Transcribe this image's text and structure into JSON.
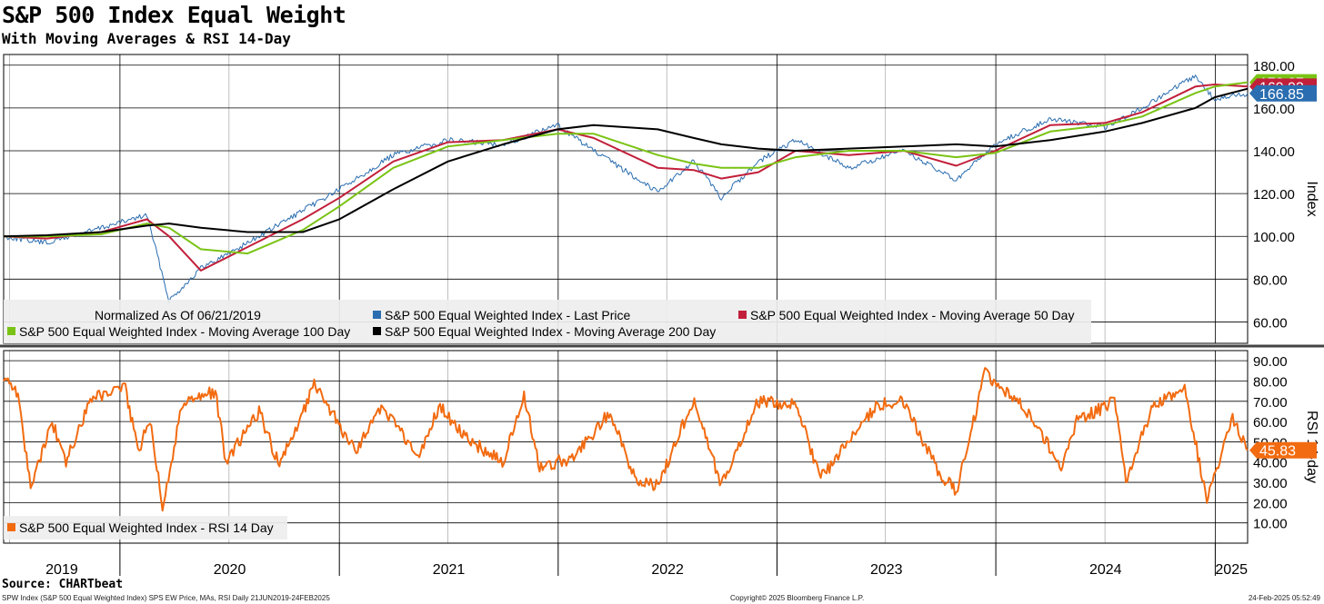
{
  "header": {
    "title": "S&P 500 Index Equal Weight",
    "subtitle": "With Moving Averages & RSI 14-Day"
  },
  "footer": {
    "source": "Source: CHARTbeat",
    "left": "SPW Index (S&P 500 Equal Weighted Index) SPS EW Price, MAs, RSI  Daily 21JUN2019-24FEB2025",
    "center": "Copyright© 2025 Bloomberg Finance L.P.",
    "right": "24-Feb-2025 05:52:49"
  },
  "colors": {
    "last_price": "#2a6db0",
    "ma50": "#c21f3a",
    "ma100": "#7ac314",
    "ma200": "#000000",
    "rsi": "#f26b10",
    "grid": "#000000",
    "legend_bg": "#eeeeee"
  },
  "chart_data": [
    {
      "type": "line",
      "ylabel": "Index",
      "ylim": [
        50,
        185
      ],
      "yticks": [
        "180.00",
        "160.00",
        "140.00",
        "120.00",
        "100.00",
        "80.00",
        "60.00"
      ],
      "ytick_values": [
        180,
        160,
        140,
        120,
        100,
        80,
        60
      ],
      "x": [
        "2019-06-21",
        "2019-09-01",
        "2019-12-01",
        "2020-02-15",
        "2020-03-23",
        "2020-05-15",
        "2020-08-01",
        "2020-11-01",
        "2021-01-01",
        "2021-04-01",
        "2021-07-01",
        "2021-10-01",
        "2021-12-31",
        "2022-03-01",
        "2022-06-16",
        "2022-08-15",
        "2022-09-30",
        "2022-12-01",
        "2023-02-01",
        "2023-05-01",
        "2023-08-01",
        "2023-10-27",
        "2023-12-31",
        "2024-04-01",
        "2024-07-01",
        "2024-09-01",
        "2024-11-29",
        "2024-12-31",
        "2025-02-24"
      ],
      "series": [
        {
          "name": "S&P 500 Equal Weighted Index - Last Price",
          "color": "#2a6db0",
          "values": [
            100,
            97,
            104,
            110,
            70,
            85,
            97,
            112,
            122,
            138,
            145,
            143,
            152,
            140,
            121,
            135,
            118,
            135,
            145,
            132,
            140,
            126,
            143,
            155,
            151,
            160,
            175,
            164,
            166.85
          ]
        },
        {
          "name": "S&P 500 Equal Weighted Index - Moving Average 50 Day",
          "color": "#c21f3a",
          "values": [
            100,
            99,
            102,
            108,
            100,
            84,
            95,
            108,
            118,
            135,
            144,
            145,
            150,
            146,
            132,
            131,
            127,
            130,
            140,
            138,
            140,
            133,
            140,
            152,
            153,
            158,
            170,
            171,
            170
          ]
        },
        {
          "name": "S&P 500 Equal Weighted Index - Moving Average 100 Day",
          "color": "#7ac314",
          "values": [
            100,
            100,
            101,
            106,
            104,
            94,
            92,
            103,
            114,
            132,
            142,
            145,
            148,
            148,
            138,
            134,
            132,
            132,
            137,
            140,
            140,
            137,
            139,
            149,
            152,
            156,
            167,
            170,
            172
          ]
        },
        {
          "name": "S&P 500 Equal Weighted Index - Moving Average 200 Day",
          "color": "#000000",
          "values": [
            100,
            100.5,
            102,
            105,
            106,
            104,
            102,
            102,
            108,
            122,
            135,
            143,
            150,
            152,
            150,
            146,
            143,
            141,
            140,
            141,
            142,
            143,
            142,
            145,
            149,
            153,
            160,
            165,
            169
          ]
        }
      ],
      "last_value_labels": [
        {
          "series": "S&P 500 Equal Weighted Index - Moving Average 100 Day",
          "text": "172.27",
          "color": "#7ac314"
        },
        {
          "series": "S&P 500 Equal Weighted Index - Moving Average 50 Day",
          "text": "169.93",
          "color": "#c21f3a"
        },
        {
          "series": "S&P 500 Equal Weighted Index - Last Price",
          "text": "166.85",
          "color": "#2a6db0"
        }
      ],
      "legend": {
        "note": "Normalized As Of 06/21/2019",
        "placement": "bottom-left",
        "entries": [
          {
            "label": "S&P 500 Equal Weighted Index - Last Price",
            "color": "#2a6db0"
          },
          {
            "label": "S&P 500 Equal Weighted Index - Moving Average 50 Day",
            "color": "#c21f3a"
          },
          {
            "label": "S&P 500 Equal Weighted Index - Moving Average 100 Day",
            "color": "#7ac314"
          },
          {
            "label": "S&P 500 Equal Weighted Index - Moving Average 200 Day",
            "color": "#000000"
          }
        ]
      },
      "grid": true
    },
    {
      "type": "line",
      "ylabel": "RSI 14-day",
      "ylim": [
        0,
        95
      ],
      "yticks": [
        "90.00",
        "80.00",
        "70.00",
        "60.00",
        "50.00",
        "40.00",
        "30.00",
        "20.00",
        "10.00"
      ],
      "ytick_values": [
        90,
        80,
        70,
        60,
        50,
        40,
        30,
        20,
        10
      ],
      "x": [
        "2019-06-21",
        "2019-07-15",
        "2019-08-05",
        "2019-09-10",
        "2019-10-03",
        "2019-11-15",
        "2020-01-10",
        "2020-01-31",
        "2020-02-20",
        "2020-03-12",
        "2020-04-15",
        "2020-06-08",
        "2020-06-26",
        "2020-08-20",
        "2020-09-23",
        "2020-11-20",
        "2021-01-29",
        "2021-03-12",
        "2021-05-12",
        "2021-06-18",
        "2021-07-30",
        "2021-09-30",
        "2021-11-05",
        "2021-12-01",
        "2022-01-27",
        "2022-03-29",
        "2022-05-11",
        "2022-06-16",
        "2022-08-16",
        "2022-09-30",
        "2022-11-30",
        "2023-02-02",
        "2023-03-15",
        "2023-06-15",
        "2023-07-31",
        "2023-09-26",
        "2023-10-27",
        "2023-12-14",
        "2024-02-15",
        "2024-04-19",
        "2024-05-15",
        "2024-07-17",
        "2024-08-05",
        "2024-09-19",
        "2024-11-11",
        "2024-12-18",
        "2025-01-30",
        "2025-02-24"
      ],
      "series": [
        {
          "name": "S&P 500 Equal Weighted Index - RSI 14 Day",
          "color": "#f26b10",
          "values": [
            82,
            74,
            28,
            60,
            40,
            72,
            76,
            45,
            62,
            18,
            70,
            75,
            40,
            65,
            38,
            78,
            45,
            68,
            42,
            68,
            52,
            40,
            72,
            38,
            42,
            65,
            30,
            28,
            72,
            28,
            70,
            68,
            32,
            68,
            70,
            36,
            25,
            84,
            68,
            38,
            60,
            70,
            30,
            68,
            76,
            22,
            62,
            45.83
          ]
        }
      ],
      "last_value_labels": [
        {
          "series": "S&P 500 Equal Weighted Index - RSI 14 Day",
          "text": "45.83",
          "color": "#f26b10"
        }
      ],
      "legend": {
        "placement": "bottom-left",
        "entries": [
          {
            "label": "S&P 500 Equal Weighted Index - RSI 14 Day",
            "color": "#f26b10"
          }
        ]
      },
      "grid": true
    }
  ],
  "x_axis": {
    "start": "2019-06-21",
    "end": "2025-02-24",
    "years": [
      "2019",
      "2020",
      "2021",
      "2022",
      "2023",
      "2024",
      "2025"
    ]
  }
}
